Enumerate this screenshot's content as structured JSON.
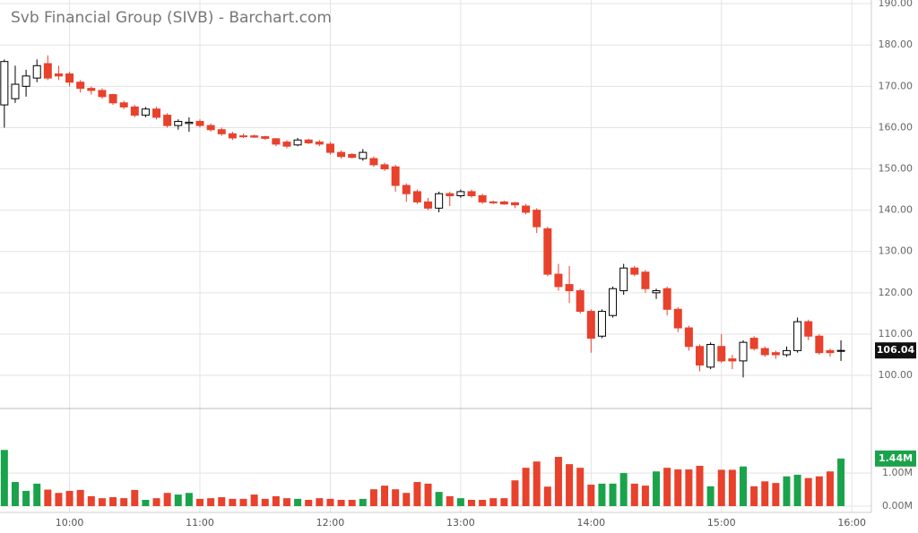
{
  "chart_data": {
    "type": "candlestick",
    "title": "Svb Financial Group (SIVB) - Barchart.com",
    "x": [
      570,
      575,
      580,
      585,
      590,
      595,
      600,
      605,
      610,
      615,
      620,
      625,
      630,
      635,
      640,
      645,
      650,
      655,
      660,
      665,
      670,
      675,
      680,
      685,
      690,
      695,
      700,
      705,
      710,
      715,
      720,
      725,
      730,
      735,
      740,
      745,
      750,
      755,
      760,
      765,
      770,
      775,
      780,
      785,
      790,
      795,
      800,
      805,
      810,
      815,
      820,
      825,
      830,
      835,
      840,
      845,
      850,
      855,
      860,
      865,
      870,
      875,
      880,
      885,
      890,
      895,
      900,
      905,
      910,
      915,
      920,
      925,
      930,
      935,
      940,
      945,
      950,
      955
    ],
    "open": [
      165.5,
      167,
      170,
      172,
      175.5,
      173,
      173,
      171,
      169.5,
      169,
      168,
      166,
      165,
      163,
      164.5,
      163,
      160.5,
      161,
      161.5,
      160.5,
      159.5,
      158.5,
      158,
      158,
      157.8,
      157.3,
      156.5,
      155.8,
      157,
      156.5,
      156,
      154,
      153.5,
      152.5,
      152.5,
      151,
      150.5,
      146,
      144.5,
      142,
      140.5,
      144,
      143.5,
      144.5,
      143.5,
      142,
      142,
      141.8,
      141,
      140,
      135.5,
      124.5,
      122,
      120.5,
      115.5,
      109.5,
      114.5,
      120.5,
      126,
      125,
      120,
      121,
      116,
      111.5,
      107,
      102,
      107,
      104,
      103.5,
      109,
      106.5,
      105.5,
      105,
      106,
      113,
      109.5,
      106,
      106
    ],
    "high": [
      176.5,
      175,
      174,
      176.5,
      177.5,
      175,
      173.5,
      171.5,
      170,
      169.5,
      168.2,
      166.5,
      165.5,
      165,
      165,
      163.5,
      162,
      162.5,
      162,
      161,
      160,
      159,
      158.5,
      158.3,
      158,
      157.5,
      157,
      157.5,
      157.3,
      157,
      156.5,
      154.5,
      153.8,
      154.8,
      153,
      151.5,
      151,
      146.5,
      145,
      143,
      144.5,
      144.5,
      145,
      145,
      144,
      142.3,
      142.3,
      142,
      141.5,
      140.5,
      136,
      127,
      126.5,
      121,
      116,
      116,
      121.5,
      127,
      126.5,
      125.5,
      121,
      121.5,
      116.5,
      112,
      107.5,
      108,
      110,
      105,
      108.5,
      109.5,
      107,
      106,
      107,
      114,
      113.5,
      110,
      106.5,
      108.5
    ],
    "low": [
      160,
      166,
      167.5,
      171,
      171.5,
      171.5,
      170,
      168.5,
      168,
      167,
      165.5,
      164.5,
      162.5,
      162.5,
      162,
      160,
      159.5,
      159,
      160,
      159,
      158,
      157,
      157.5,
      157.5,
      157,
      155.5,
      155,
      155.5,
      156,
      155.5,
      153.5,
      152.5,
      152.5,
      152,
      150.5,
      149.5,
      144.5,
      142,
      141.5,
      140,
      139.5,
      141,
      143,
      143,
      141.5,
      141.5,
      141.3,
      140.5,
      139,
      134.5,
      124,
      120.5,
      117.5,
      115,
      105.5,
      109,
      114,
      119.5,
      124,
      120,
      118.5,
      114.5,
      110.5,
      106,
      101,
      101.5,
      103,
      101.5,
      99.5,
      106,
      104.5,
      104,
      104.5,
      105.5,
      108.5,
      105,
      104.5,
      103.5
    ],
    "close": [
      176,
      170.5,
      172.5,
      175,
      172,
      172.5,
      171,
      169.5,
      169,
      167.5,
      166,
      165,
      163,
      164.5,
      162.5,
      160.5,
      161.5,
      161.3,
      160.5,
      159.5,
      158.5,
      157.5,
      157.8,
      157.7,
      157.4,
      156,
      155.5,
      157,
      156.3,
      156,
      154,
      153,
      152.8,
      154,
      151,
      150,
      146,
      144,
      142,
      140.5,
      144,
      143.5,
      144.5,
      143.5,
      142,
      141.8,
      141.5,
      141.3,
      139.5,
      136,
      124.5,
      121.5,
      120.5,
      115.5,
      109,
      115.5,
      121,
      126,
      124.5,
      121,
      120.5,
      116,
      111.5,
      107,
      102.5,
      107.5,
      103.5,
      103.5,
      108,
      106.5,
      105,
      105,
      106,
      113,
      109.5,
      105.5,
      105.5,
      106.04
    ],
    "volume": [
      1.7,
      0.73,
      0.46,
      0.68,
      0.5,
      0.4,
      0.46,
      0.49,
      0.3,
      0.24,
      0.27,
      0.24,
      0.49,
      0.19,
      0.24,
      0.4,
      0.35,
      0.4,
      0.22,
      0.24,
      0.27,
      0.22,
      0.22,
      0.35,
      0.22,
      0.3,
      0.24,
      0.22,
      0.19,
      0.24,
      0.22,
      0.19,
      0.19,
      0.22,
      0.51,
      0.62,
      0.51,
      0.4,
      0.73,
      0.68,
      0.43,
      0.3,
      0.24,
      0.19,
      0.19,
      0.24,
      0.24,
      0.78,
      1.16,
      1.35,
      0.59,
      1.49,
      1.27,
      1.16,
      0.65,
      0.68,
      0.68,
      1.0,
      0.68,
      0.62,
      1.05,
      1.16,
      1.11,
      1.11,
      1.22,
      0.6,
      1.1,
      1.1,
      1.2,
      0.6,
      0.75,
      0.7,
      0.9,
      0.95,
      0.85,
      0.9,
      1.05,
      1.44
    ],
    "up_color": "#000000",
    "down_color": "#e8412c",
    "volume_up_color": "#1ba34b",
    "volume_down_color": "#e8412c",
    "xlim": [
      568,
      969
    ],
    "xticks": [
      {
        "value": 600,
        "label": "10:00"
      },
      {
        "value": 660,
        "label": "11:00"
      },
      {
        "value": 720,
        "label": "12:00"
      },
      {
        "value": 780,
        "label": "13:00"
      },
      {
        "value": 840,
        "label": "14:00"
      },
      {
        "value": 900,
        "label": "15:00"
      },
      {
        "value": 960,
        "label": "16:00"
      }
    ],
    "ylim": [
      92.2,
      190.9
    ],
    "yticks": [
      {
        "value": 100,
        "label": "100.00"
      },
      {
        "value": 110,
        "label": "110.00"
      },
      {
        "value": 120,
        "label": "120.00"
      },
      {
        "value": 130,
        "label": "130.00"
      },
      {
        "value": 140,
        "label": "140.00"
      },
      {
        "value": 150,
        "label": "150.00"
      },
      {
        "value": 160,
        "label": "160.00"
      },
      {
        "value": 170,
        "label": "170.00"
      },
      {
        "value": 180,
        "label": "180.00"
      },
      {
        "value": 190,
        "label": "190.00"
      }
    ],
    "vlim": [
      0,
      2.9
    ],
    "vticks": [
      {
        "value": 0,
        "label": "0.00M"
      },
      {
        "value": 1,
        "label": "1.00M"
      }
    ],
    "last_price": 106.04,
    "current_volume": {
      "value": 1.44,
      "label": "1.44M"
    },
    "grid": true
  }
}
